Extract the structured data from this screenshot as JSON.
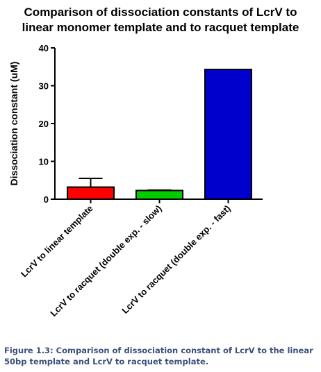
{
  "chart_data": {
    "type": "bar",
    "title_lines": [
      "Comparison of dissociation constants of LcrV to",
      "linear monomer template and to racquet template"
    ],
    "ylabel": "Dissociation constant (uM)",
    "xlabel": "",
    "ylim": [
      0,
      40
    ],
    "yticks": [
      0,
      10,
      20,
      30,
      40
    ],
    "categories": [
      "LcrV to linear template",
      "LcrV to racquet (double exp. - slow)",
      "LcrV to racquet (double exp. - fast)"
    ],
    "values": [
      3.2,
      2.3,
      34.3
    ],
    "error_upper": [
      5.5,
      2.4,
      null
    ],
    "colors": [
      "#ff0000",
      "#00cc00",
      "#0000cc"
    ],
    "grid": false
  },
  "caption": "Figure 1.3: Comparison of dissociation constant of LcrV to the linear 50bp template and LcrV to racquet template."
}
